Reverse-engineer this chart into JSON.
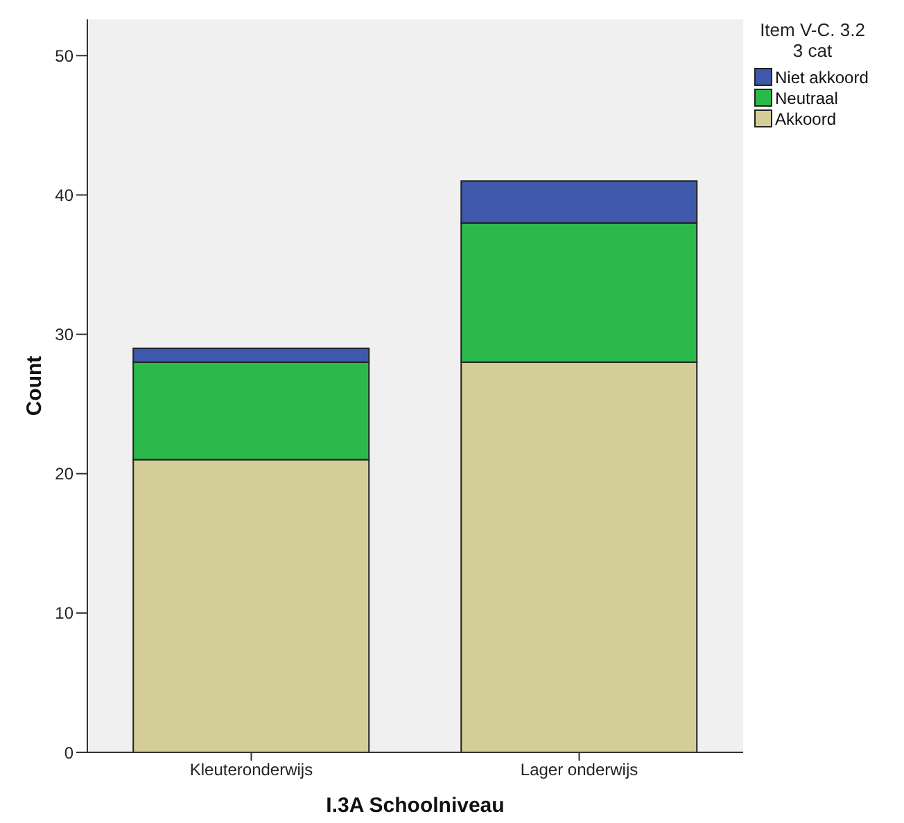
{
  "chart_data": {
    "type": "bar",
    "stacked": true,
    "xlabel": "I.3A  Schoolniveau",
    "ylabel": "Count",
    "legend_title": "Item V-C. 3.2 3 cat",
    "legend": "top right",
    "grid": false,
    "categories": [
      "Kleuteronderwijs",
      "Lager onderwijs"
    ],
    "series": [
      {
        "name": "Akkoord",
        "color": "#d3ce97",
        "values": [
          21,
          28
        ]
      },
      {
        "name": "Neutraal",
        "color": "#2db84a",
        "values": [
          7,
          10
        ]
      },
      {
        "name": "Niet akkoord",
        "color": "#3e58ac",
        "values": [
          1,
          3
        ]
      }
    ],
    "ylim": [
      0,
      52.6
    ],
    "yticks": [
      0,
      10,
      20,
      30,
      40,
      50
    ]
  }
}
